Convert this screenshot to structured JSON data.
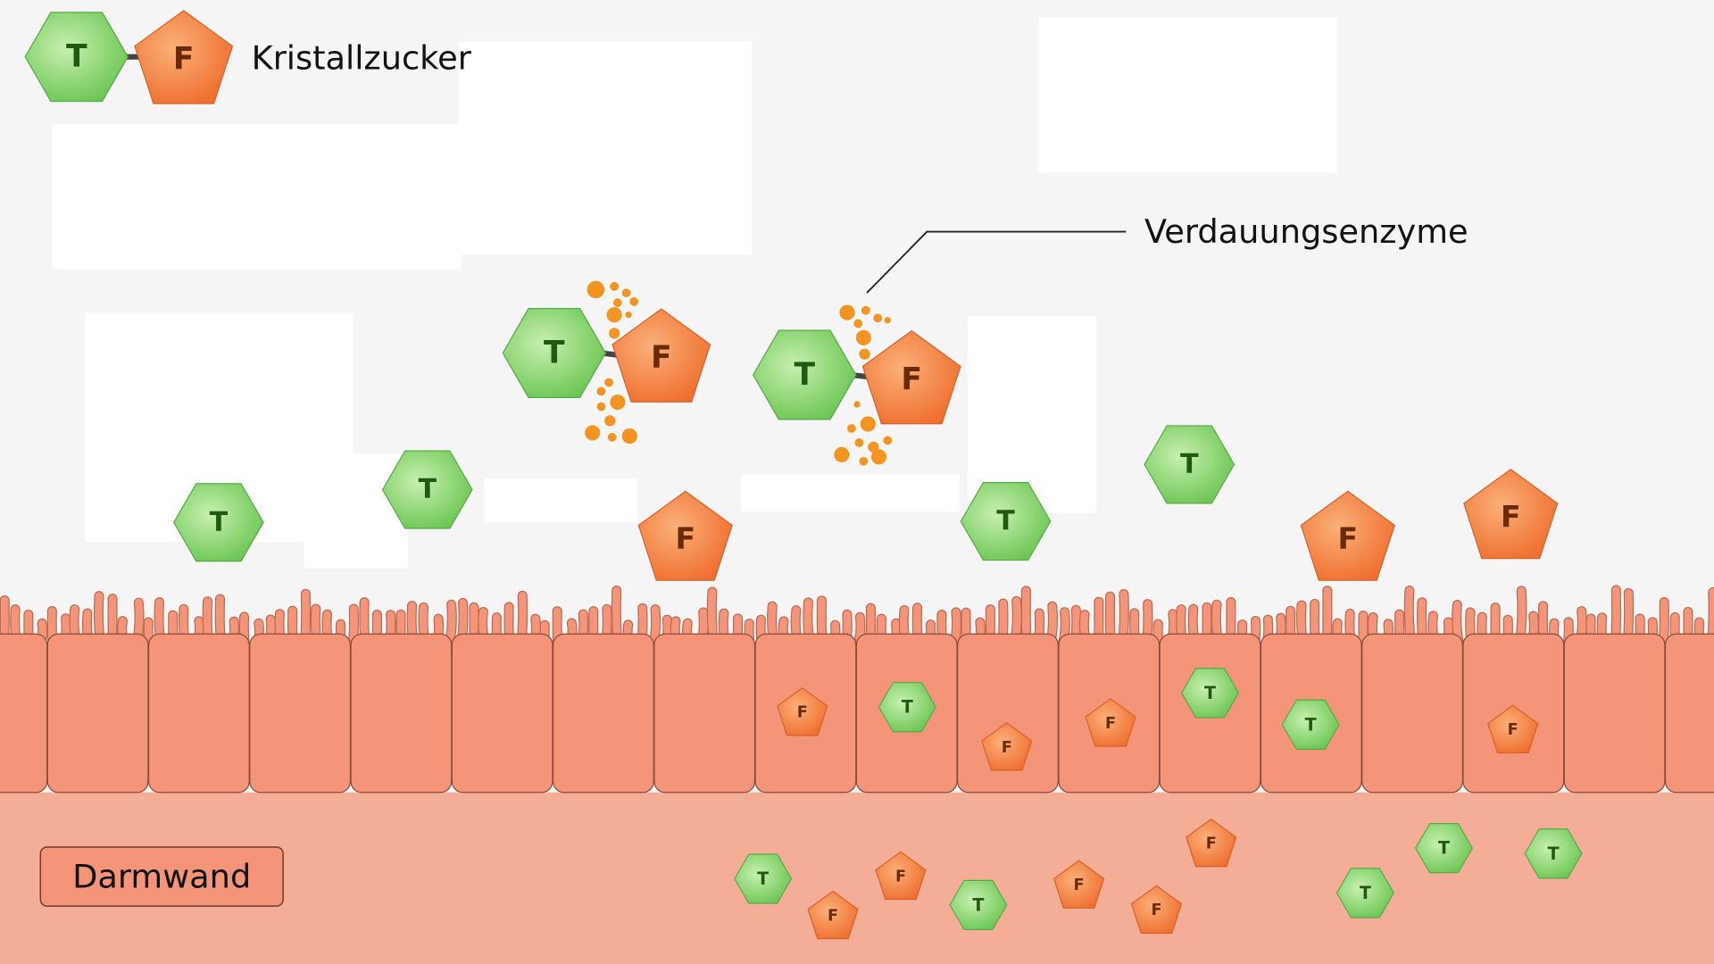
{
  "legend": {
    "label": "Kristallzucker"
  },
  "callout": {
    "label": "Verdauungsenzyme"
  },
  "region": {
    "label": "Darmwand"
  },
  "molecules": {
    "glucose": "T",
    "fructose": "F"
  }
}
